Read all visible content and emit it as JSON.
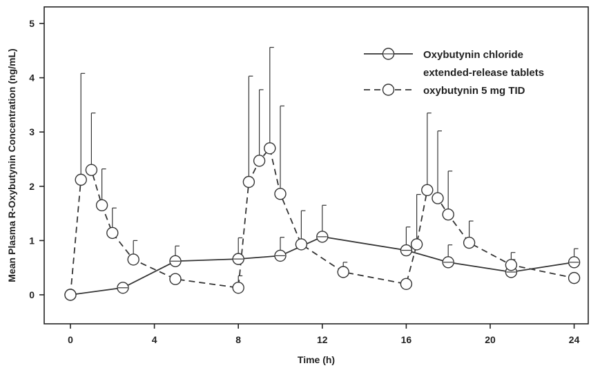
{
  "chart_data": {
    "type": "line",
    "title": "",
    "xlabel": "Time (h)",
    "ylabel": "Mean Plasma R-Oxybutynin Concentration (ng/mL)",
    "xlim": [
      -1,
      25
    ],
    "ylim": [
      -0.55,
      5.3
    ],
    "xticks": [
      0,
      4,
      8,
      12,
      16,
      20,
      24
    ],
    "yticks": [
      0,
      1,
      2,
      3,
      4,
      5
    ],
    "grid": false,
    "legend_position": "top-right",
    "series": [
      {
        "name_lines": [
          "Oxybutynin chloride",
          "extended-release tablets"
        ],
        "line_style": "solid",
        "marker": "circle-with-bar",
        "color": "#333333",
        "points": [
          {
            "x": 0,
            "y": 0.0,
            "err": null
          },
          {
            "x": 2.5,
            "y": 0.13,
            "err": null
          },
          {
            "x": 5,
            "y": 0.62,
            "err": 0.9
          },
          {
            "x": 8,
            "y": 0.66,
            "err": 1.05
          },
          {
            "x": 10,
            "y": 0.72,
            "err": 1.06
          },
          {
            "x": 12,
            "y": 1.07,
            "err": 1.65
          },
          {
            "x": 16,
            "y": 0.82,
            "err": 1.25
          },
          {
            "x": 18,
            "y": 0.6,
            "err": 0.92
          },
          {
            "x": 21,
            "y": 0.42,
            "err": 0.65
          },
          {
            "x": 24,
            "y": 0.6,
            "err": 0.85
          }
        ]
      },
      {
        "name_lines": [
          "oxybutynin 5 mg TID"
        ],
        "line_style": "dashed",
        "marker": "circle",
        "color": "#333333",
        "points": [
          {
            "x": 0,
            "y": 0.0,
            "err": null
          },
          {
            "x": 0.5,
            "y": 2.12,
            "err": 4.08
          },
          {
            "x": 1,
            "y": 2.3,
            "err": 3.35
          },
          {
            "x": 1.5,
            "y": 1.65,
            "err": 2.32
          },
          {
            "x": 2,
            "y": 1.14,
            "err": 1.6
          },
          {
            "x": 3,
            "y": 0.65,
            "err": 1.0
          },
          {
            "x": 5,
            "y": 0.29,
            "err": null
          },
          {
            "x": 8,
            "y": 0.13,
            "err": 0.35
          },
          {
            "x": 8.5,
            "y": 2.08,
            "err": 4.03
          },
          {
            "x": 9,
            "y": 2.47,
            "err": 3.78
          },
          {
            "x": 9.5,
            "y": 2.7,
            "err": 4.56
          },
          {
            "x": 10,
            "y": 1.86,
            "err": 3.48
          },
          {
            "x": 11,
            "y": 0.93,
            "err": 1.55
          },
          {
            "x": 13,
            "y": 0.42,
            "err": 0.6
          },
          {
            "x": 16,
            "y": 0.2,
            "err": null
          },
          {
            "x": 16.5,
            "y": 0.93,
            "err": 1.85
          },
          {
            "x": 17,
            "y": 1.93,
            "err": 3.35
          },
          {
            "x": 17.5,
            "y": 1.78,
            "err": 3.02
          },
          {
            "x": 18,
            "y": 1.48,
            "err": 2.28
          },
          {
            "x": 19,
            "y": 0.96,
            "err": 1.36
          },
          {
            "x": 21,
            "y": 0.55,
            "err": 0.78
          },
          {
            "x": 24,
            "y": 0.31,
            "err": null
          }
        ]
      }
    ]
  }
}
